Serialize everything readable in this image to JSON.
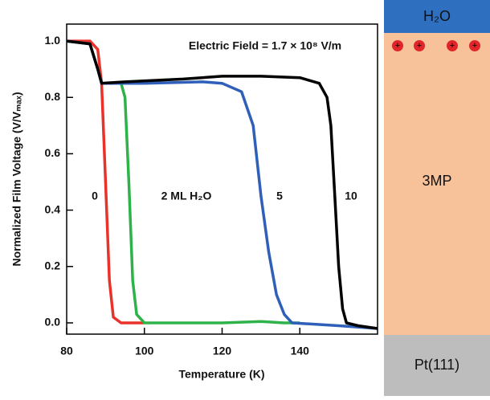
{
  "chart_data": {
    "type": "line",
    "annotation": "Electric Field = 1.7 × 10⁸ V/m",
    "xlabel": "Temperature (K)",
    "ylabel": "Normalized Film Voltage (V/Vₘₐₓ)",
    "xlim": [
      80,
      160
    ],
    "xticks": [
      80,
      100,
      120,
      140
    ],
    "ylim": [
      -0.04,
      1.06
    ],
    "yticks": [
      {
        "value": 0,
        "label": "0.0"
      },
      0.2,
      0.4,
      0.6,
      0.8,
      {
        "value": 1,
        "label": "1.0"
      }
    ],
    "series": [
      {
        "name": "0",
        "color": "#e8322a",
        "x": [
          80,
          86,
          88,
          89,
          90,
          91,
          92,
          94,
          100
        ],
        "values": [
          1.0,
          1.0,
          0.97,
          0.85,
          0.5,
          0.15,
          0.02,
          0.0,
          0.0
        ]
      },
      {
        "name": "2 ML H₂O",
        "color": "#2db34a",
        "x": [
          80,
          86,
          88,
          89,
          94,
          95,
          96,
          97,
          98,
          100,
          120,
          130,
          136,
          140
        ],
        "values": [
          1.0,
          0.99,
          0.9,
          0.85,
          0.85,
          0.8,
          0.5,
          0.15,
          0.03,
          0.0,
          0.0,
          0.005,
          0.0,
          0.0
        ]
      },
      {
        "name": "5",
        "color": "#2f5fb8",
        "x": [
          80,
          86,
          88,
          89,
          100,
          115,
          120,
          125,
          128,
          130,
          132,
          134,
          136,
          138,
          150,
          160
        ],
        "values": [
          1.0,
          0.99,
          0.9,
          0.85,
          0.85,
          0.855,
          0.85,
          0.82,
          0.7,
          0.45,
          0.25,
          0.1,
          0.03,
          0.0,
          -0.01,
          -0.02
        ]
      },
      {
        "name": "10",
        "color": "#000000",
        "x": [
          80,
          86,
          88,
          89,
          95,
          110,
          120,
          130,
          140,
          145,
          147,
          148,
          149,
          150,
          151,
          152,
          155,
          160
        ],
        "values": [
          1.0,
          0.99,
          0.9,
          0.85,
          0.855,
          0.865,
          0.875,
          0.875,
          0.87,
          0.85,
          0.8,
          0.7,
          0.45,
          0.2,
          0.05,
          0.0,
          -0.01,
          -0.02
        ]
      }
    ]
  },
  "diagram": {
    "layers": [
      "H₂O",
      "3MP",
      "Pt(111)"
    ],
    "charge": "+"
  }
}
